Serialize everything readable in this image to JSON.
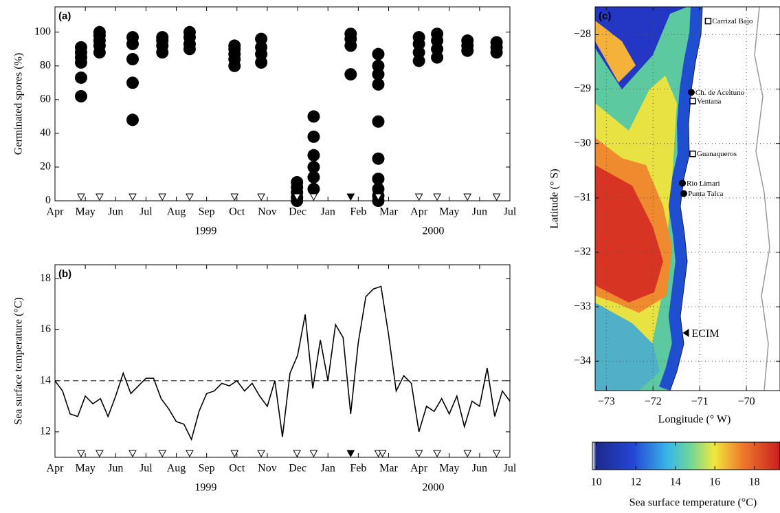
{
  "chart_data": [
    {
      "type": "scatter",
      "title": "(a)",
      "ylabel": "Germinated spores (%)",
      "xlim": [
        0,
        15
      ],
      "ylim": [
        0,
        115
      ],
      "xticks": [
        {
          "value": 0,
          "label": "Apr"
        },
        {
          "value": 1,
          "label": "May"
        },
        {
          "value": 2,
          "label": "Jun"
        },
        {
          "value": 3,
          "label": "Jul"
        },
        {
          "value": 4,
          "label": "Aug"
        },
        {
          "value": 5,
          "label": "Sep"
        },
        {
          "value": 6,
          "label": "Oct"
        },
        {
          "value": 7,
          "label": "Nov"
        },
        {
          "value": 8,
          "label": "Dec"
        },
        {
          "value": 9,
          "label": "Jan"
        },
        {
          "value": 10,
          "label": "Feb"
        },
        {
          "value": 11,
          "label": "Mar"
        },
        {
          "value": 12,
          "label": "Apr"
        },
        {
          "value": 13,
          "label": "May"
        },
        {
          "value": 14,
          "label": "Jun"
        },
        {
          "value": 15,
          "label": "Jul"
        }
      ],
      "yticks": [
        0,
        20,
        40,
        60,
        80,
        100
      ],
      "year_labels": [
        {
          "text": "1999",
          "x": 4.97
        },
        {
          "text": "2000",
          "x": 12.47
        }
      ],
      "color": "#000000",
      "x": [
        0.86,
        0.86,
        0.86,
        0.86,
        0.86,
        0.86,
        1.47,
        1.47,
        1.47,
        1.47,
        1.47,
        2.56,
        2.56,
        2.56,
        2.56,
        2.56,
        3.54,
        3.54,
        3.54,
        3.54,
        4.44,
        4.44,
        4.44,
        4.44,
        5.92,
        5.92,
        5.92,
        5.92,
        5.92,
        6.8,
        6.8,
        6.8,
        6.8,
        7.98,
        7.98,
        7.98,
        7.98,
        7.98,
        8.53,
        8.53,
        8.53,
        8.53,
        8.53,
        8.53,
        9.75,
        9.75,
        9.75,
        9.75,
        10.66,
        10.66,
        10.66,
        10.66,
        10.66,
        10.66,
        10.66,
        10.66,
        10.66,
        10.66,
        12.0,
        12.0,
        12.0,
        12.0,
        12.6,
        12.6,
        12.6,
        12.6,
        13.6,
        13.6,
        13.6,
        14.56,
        14.56,
        14.56
      ],
      "values": [
        62,
        73,
        82,
        85,
        88,
        91,
        88,
        92,
        95,
        98,
        100,
        48,
        70,
        84,
        93,
        97,
        88,
        92,
        95,
        97,
        90,
        93,
        97,
        100,
        80,
        84,
        87,
        90,
        92,
        82,
        87,
        91,
        96,
        0,
        2,
        5,
        8,
        11,
        7,
        14,
        20,
        27,
        38,
        50,
        75,
        92,
        96,
        99,
        0,
        3,
        7,
        13,
        25,
        47,
        69,
        75,
        80,
        87,
        83,
        88,
        93,
        97,
        85,
        90,
        95,
        99,
        89,
        92,
        95,
        88,
        91,
        94
      ],
      "sampling_x": [
        0.86,
        1.47,
        2.56,
        3.54,
        4.44,
        5.92,
        6.8,
        7.98,
        8.53,
        10.66,
        12.0,
        12.6,
        13.6,
        14.56
      ],
      "sampling_filled_x": [
        9.75
      ]
    },
    {
      "type": "line",
      "title": "(b)",
      "ylabel": "Sea surface temperature (°C)",
      "xlim": [
        0,
        15
      ],
      "ylim": [
        11,
        18.55
      ],
      "xticks": [
        {
          "value": 0,
          "label": "Apr"
        },
        {
          "value": 1,
          "label": "May"
        },
        {
          "value": 2,
          "label": "Jun"
        },
        {
          "value": 3,
          "label": "Jul"
        },
        {
          "value": 4,
          "label": "Aug"
        },
        {
          "value": 5,
          "label": "Sep"
        },
        {
          "value": 6,
          "label": "Oct"
        },
        {
          "value": 7,
          "label": "Nov"
        },
        {
          "value": 8,
          "label": "Dec"
        },
        {
          "value": 9,
          "label": "Jan"
        },
        {
          "value": 10,
          "label": "Feb"
        },
        {
          "value": 11,
          "label": "Mar"
        },
        {
          "value": 12,
          "label": "Apr"
        },
        {
          "value": 13,
          "label": "May"
        },
        {
          "value": 14,
          "label": "Jun"
        },
        {
          "value": 15,
          "label": "Jul"
        }
      ],
      "yticks": [
        12,
        14,
        16,
        18
      ],
      "reference_line": 14,
      "year_labels": [
        {
          "text": "1999",
          "x": 4.97
        },
        {
          "text": "2000",
          "x": 12.47
        }
      ],
      "color": "#000000",
      "x": [
        0,
        0.25,
        0.5,
        0.75,
        1,
        1.25,
        1.5,
        1.75,
        2,
        2.25,
        2.5,
        2.75,
        3,
        3.25,
        3.5,
        3.75,
        4,
        4.25,
        4.5,
        4.75,
        5,
        5.25,
        5.5,
        5.75,
        6,
        6.25,
        6.5,
        6.75,
        7,
        7.25,
        7.5,
        7.75,
        8,
        8.25,
        8.5,
        8.75,
        9,
        9.25,
        9.5,
        9.75,
        10,
        10.25,
        10.5,
        10.75,
        11,
        11.25,
        11.5,
        11.75,
        12,
        12.25,
        12.5,
        12.75,
        13,
        13.25,
        13.5,
        13.75,
        14,
        14.25,
        14.5,
        14.75,
        15
      ],
      "values": [
        14.0,
        13.6,
        12.7,
        12.6,
        13.4,
        13.1,
        13.3,
        12.6,
        13.4,
        14.3,
        13.5,
        13.8,
        14.1,
        14.1,
        13.3,
        12.9,
        12.4,
        12.3,
        11.7,
        12.8,
        13.5,
        13.6,
        13.9,
        13.8,
        14.0,
        13.6,
        13.9,
        13.4,
        13.0,
        14.0,
        11.8,
        14.3,
        15.0,
        16.6,
        13.7,
        15.6,
        14.0,
        16.2,
        15.7,
        12.7,
        15.5,
        17.3,
        17.6,
        17.7,
        15.8,
        13.6,
        14.2,
        13.9,
        12.0,
        13.0,
        12.8,
        13.3,
        12.7,
        13.4,
        12.2,
        13.2,
        13.0,
        14.5,
        12.6,
        13.6,
        13.2
      ],
      "sampling_x": [
        0.86,
        1.47,
        2.56,
        3.54,
        4.44,
        5.92,
        6.8,
        7.98,
        8.53,
        10.66,
        10.8,
        12.0,
        12.6,
        13.6,
        14.56
      ],
      "sampling_filled_x": [
        9.75
      ]
    },
    {
      "type": "map",
      "title": "(c)",
      "xlabel": "Longitude (° W)",
      "ylabel": "Latitude (° S)",
      "xlim": [
        -73.24,
        -69.28
      ],
      "ylim": [
        -34.54,
        -27.49
      ],
      "grid": true,
      "xticks": [
        {
          "value": -73,
          "label": "−73"
        },
        {
          "value": -72,
          "label": "−72"
        },
        {
          "value": -71,
          "label": "−71"
        },
        {
          "value": -70,
          "label": "−70"
        }
      ],
      "yticks": [
        {
          "value": -28,
          "label": "−28"
        },
        {
          "value": -29,
          "label": "−29"
        },
        {
          "value": -30,
          "label": "−30"
        },
        {
          "value": -31,
          "label": "−31"
        },
        {
          "value": -32,
          "label": "−32"
        },
        {
          "value": -33,
          "label": "−33"
        },
        {
          "value": -34,
          "label": "−34"
        }
      ],
      "sites": [
        {
          "name": "Carrizal Bajo",
          "marker": "square",
          "lon": -70.82,
          "lat": -27.75
        },
        {
          "name": "Ch. de Aceituno",
          "marker": "circle",
          "lon": -71.18,
          "lat": -29.06
        },
        {
          "name": "Ventana",
          "marker": "square",
          "lon": -71.15,
          "lat": -29.22
        },
        {
          "name": "Guanaqueros",
          "marker": "square",
          "lon": -71.15,
          "lat": -30.19
        },
        {
          "name": "Rio Limari",
          "marker": "circle",
          "lon": -71.37,
          "lat": -30.73
        },
        {
          "name": "Punta Talca",
          "marker": "circle",
          "lon": -71.34,
          "lat": -30.92
        },
        {
          "name": "ECIM",
          "marker": "triangle",
          "lon": -71.26,
          "lat": -33.48
        }
      ],
      "colorbar": {
        "lim": [
          9.8,
          19.3
        ],
        "ticks": [
          10,
          12,
          14,
          16,
          18
        ],
        "label": "Sea surface temperature (°C)"
      }
    }
  ]
}
